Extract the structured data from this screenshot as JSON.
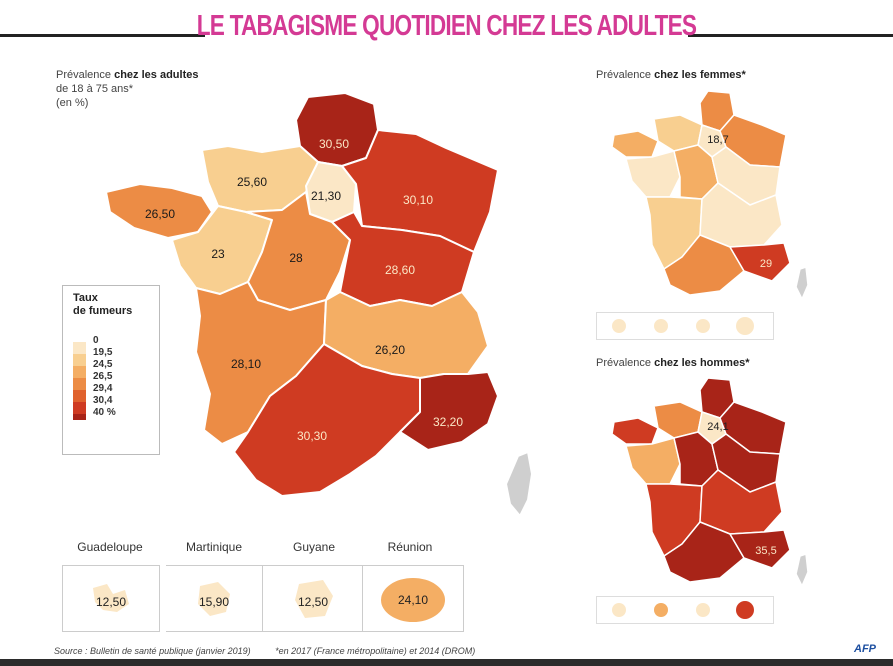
{
  "title": "LE TABAGISME QUOTIDIEN CHEZ LES ADULTES",
  "colors": {
    "title": "#d43a94",
    "c0": "#fbe7c6",
    "c1": "#f8cf90",
    "c2": "#f4ae64",
    "c3": "#ec8c45",
    "c4": "#e0622e",
    "c5": "#cf3b22",
    "c6": "#a82418"
  },
  "main_map": {
    "caption_pre": "Prévalence ",
    "caption_bold": "chez les adultes",
    "caption_line2": "de 18 à 75 ans*",
    "caption_line3": "(en %)",
    "regions": [
      {
        "name": "Hauts-de-France",
        "value": "30,50"
      },
      {
        "name": "Normandie",
        "value": "25,60"
      },
      {
        "name": "Île-de-France",
        "value": "21,30"
      },
      {
        "name": "Grand Est",
        "value": "30,10"
      },
      {
        "name": "Bretagne",
        "value": "26,50"
      },
      {
        "name": "Pays de la Loire",
        "value": "23"
      },
      {
        "name": "Centre-Val de Loire",
        "value": "28"
      },
      {
        "name": "Bourgogne-Franche-Comté",
        "value": "28,60"
      },
      {
        "name": "Nouvelle-Aquitaine",
        "value": "28,10"
      },
      {
        "name": "Auvergne-Rhône-Alpes",
        "value": "26,20"
      },
      {
        "name": "Occitanie",
        "value": "30,30"
      },
      {
        "name": "Provence-Alpes-Côte d'Azur",
        "value": "32,20"
      }
    ]
  },
  "legend": {
    "title_line1": "Taux",
    "title_line2": "de fumeurs",
    "ticks": [
      "0",
      "19,5",
      "24,5",
      "26,5",
      "29,4",
      "30,4",
      "40 %"
    ]
  },
  "overseas": [
    {
      "name": "Guadeloupe",
      "value": "12,50"
    },
    {
      "name": "Martinique",
      "value": "15,90"
    },
    {
      "name": "Guyane",
      "value": "12,50"
    },
    {
      "name": "Réunion",
      "value": "24,10"
    }
  ],
  "women_map": {
    "caption_pre": "Prévalence ",
    "caption_bold": "chez les femmes*",
    "labels": [
      "18,7",
      "29"
    ]
  },
  "men_map": {
    "caption_pre": "Prévalence ",
    "caption_bold": "chez les hommes*",
    "labels": [
      "24,1",
      "35,5"
    ]
  },
  "source": "Source : Bulletin de santé publique (janvier 2019)",
  "footnote": "*en 2017 (France métropolitaine) et 2014 (DROM)",
  "credit": "AFP"
}
